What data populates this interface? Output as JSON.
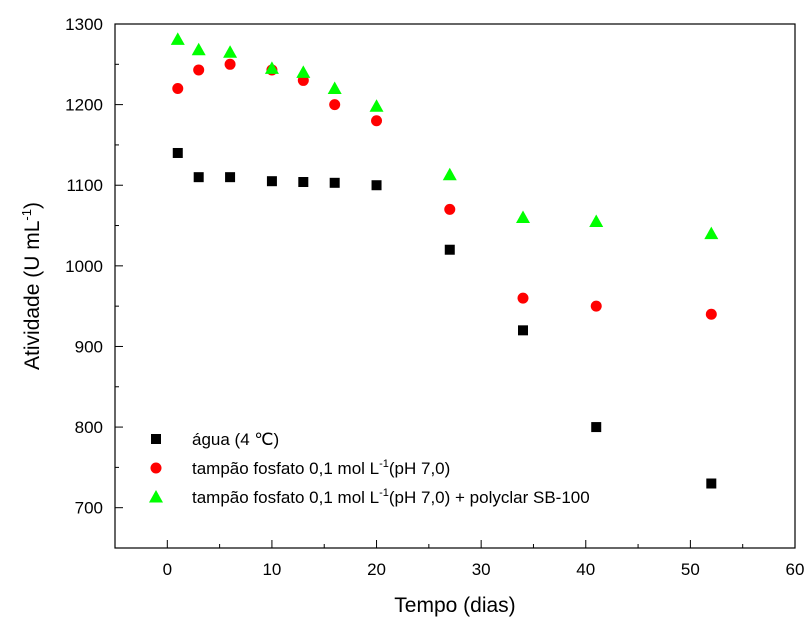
{
  "chart_data": {
    "type": "scatter",
    "xlabel": "Tempo (dias)",
    "ylabel": {
      "main": "Atividade (U mL",
      "sup": "-1",
      "end": ")"
    },
    "xlim": [
      -5,
      60
    ],
    "ylim": [
      650,
      1300
    ],
    "xticks": [
      0,
      10,
      20,
      30,
      40,
      50,
      60
    ],
    "yticks": [
      700,
      800,
      900,
      1000,
      1100,
      1200,
      1300
    ],
    "legend_position": "bottom-left",
    "series": [
      {
        "legend": {
          "main": "água (4 ℃)",
          "sup": "",
          "end": ""
        },
        "marker": "square",
        "color": "#000000",
        "points": [
          [
            1,
            1140
          ],
          [
            3,
            1110
          ],
          [
            6,
            1110
          ],
          [
            10,
            1105
          ],
          [
            13,
            1104
          ],
          [
            16,
            1103
          ],
          [
            20,
            1100
          ],
          [
            27,
            1020
          ],
          [
            34,
            920
          ],
          [
            41,
            800
          ],
          [
            52,
            730
          ]
        ]
      },
      {
        "legend": {
          "main": "tampão fosfato 0,1 mol L",
          "sup": "-1",
          "end": "(pH 7,0)"
        },
        "marker": "circle",
        "color": "#ff0000",
        "points": [
          [
            1,
            1220
          ],
          [
            3,
            1243
          ],
          [
            6,
            1250
          ],
          [
            10,
            1243
          ],
          [
            13,
            1230
          ],
          [
            16,
            1200
          ],
          [
            20,
            1180
          ],
          [
            27,
            1070
          ],
          [
            34,
            960
          ],
          [
            41,
            950
          ],
          [
            52,
            940
          ]
        ]
      },
      {
        "legend": {
          "main": "tampão fosfato 0,1 mol L",
          "sup": "-1",
          "end": "(pH 7,0) + polyclar SB-100"
        },
        "marker": "triangle",
        "color": "#00ff00",
        "points": [
          [
            1,
            1281
          ],
          [
            3,
            1268
          ],
          [
            6,
            1265
          ],
          [
            10,
            1245
          ],
          [
            13,
            1240
          ],
          [
            16,
            1220
          ],
          [
            20,
            1198
          ],
          [
            27,
            1113
          ],
          [
            34,
            1060
          ],
          [
            41,
            1055
          ],
          [
            52,
            1040
          ]
        ]
      }
    ]
  }
}
